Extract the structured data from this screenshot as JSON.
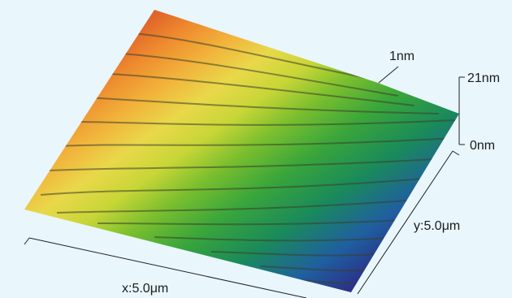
{
  "image": {
    "background_color": "#e9f6fc",
    "colormap": [
      "#2b2f86",
      "#1f5fa0",
      "#1a8a5a",
      "#3aa63a",
      "#7cbf2e",
      "#c8d637",
      "#e9d84a",
      "#f2b23b",
      "#ee8a2e",
      "#e0652a"
    ]
  },
  "annotations": {
    "step_height": "1nm",
    "z_max": "21nm",
    "z_min": "0nm",
    "x_range": "x:5.0μm",
    "y_range": "y:5.0μm"
  }
}
